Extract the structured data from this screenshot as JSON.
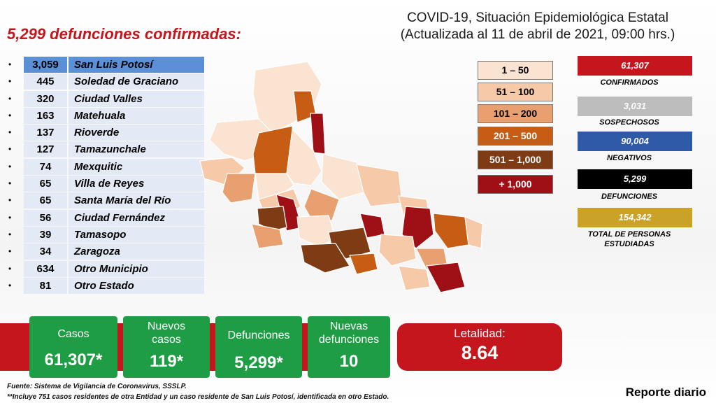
{
  "headline": "5,299 defunciones confirmadas:",
  "title": {
    "line1": "COVID-19, Situación Epidemiológica Estatal",
    "line2": "(Actualizada al  11 de abril de 2021, 09:00 hrs.)"
  },
  "municipalities": [
    {
      "value": "3,059",
      "name": "San Luis Potosí"
    },
    {
      "value": "445",
      "name": "Soledad de Graciano"
    },
    {
      "value": "320",
      "name": "Ciudad Valles"
    },
    {
      "value": "163",
      "name": "Matehuala"
    },
    {
      "value": "137",
      "name": "Rioverde"
    },
    {
      "value": "127",
      "name": "Tamazunchale"
    },
    {
      "value": "74",
      "name": "Mexquitic"
    },
    {
      "value": "65",
      "name": "Villa de Reyes"
    },
    {
      "value": "65",
      "name": "Santa María del Río"
    },
    {
      "value": "56",
      "name": "Ciudad Fernández"
    },
    {
      "value": "39",
      "name": "Tamasopo"
    },
    {
      "value": "34",
      "name": "Zaragoza"
    },
    {
      "value": "634",
      "name": "Otro Municipio"
    },
    {
      "value": "81",
      "name": "Otro Estado"
    }
  ],
  "legend": [
    {
      "label": "1 – 50",
      "color": "#fbe3d2",
      "text_color": "#000000"
    },
    {
      "label": "51 – 100",
      "color": "#f6c9a8",
      "text_color": "#000000"
    },
    {
      "label": "101 – 200",
      "color": "#e8a070",
      "text_color": "#000000"
    },
    {
      "label": "201 – 500",
      "color": "#c75d14",
      "text_color": "#ffffff"
    },
    {
      "label": "501 – 1,000",
      "color": "#7e3b14",
      "text_color": "#ffffff"
    },
    {
      "label": "+ 1,000",
      "color": "#9e1016",
      "text_color": "#ffffff"
    }
  ],
  "stats": [
    {
      "value": "61,307",
      "label": "CONFIRMADOS",
      "color": "#c4161c"
    },
    {
      "value": "3,031",
      "label": "SOSPECHOSOS",
      "color": "#bdbdbd"
    },
    {
      "value": "90,004",
      "label": "NEGATIVOS",
      "color": "#2e5aa8"
    },
    {
      "value": "5,299",
      "label": "DEFUNCIONES",
      "color": "#000000"
    },
    {
      "value": "154,342",
      "label": "TOTAL DE PERSONAS ESTUDIADAS",
      "color": "#c9a227"
    }
  ],
  "cards": {
    "casos": {
      "label": "Casos",
      "value": "61,307*"
    },
    "nuevos_casos": {
      "label": "Nuevos casos",
      "value": "119*"
    },
    "defunciones": {
      "label": "Defunciones",
      "value": "5,299*"
    },
    "nuevas_defunciones": {
      "label": "Nuevas defunciones",
      "value": "10"
    },
    "letalidad": {
      "label": "Letalidad:",
      "value": "8.64"
    }
  },
  "footer": {
    "source": "Fuente: Sistema de Vigilancia de Coronavirus, SSSLP.",
    "note": "**Incluye 751 casos residentes de otra Entidad y un caso residente de San Luis Potosí, identificada en otro Estado.",
    "report": "Reporte diario"
  },
  "colors": {
    "green": "#1f9d45",
    "red": "#c4161c"
  }
}
